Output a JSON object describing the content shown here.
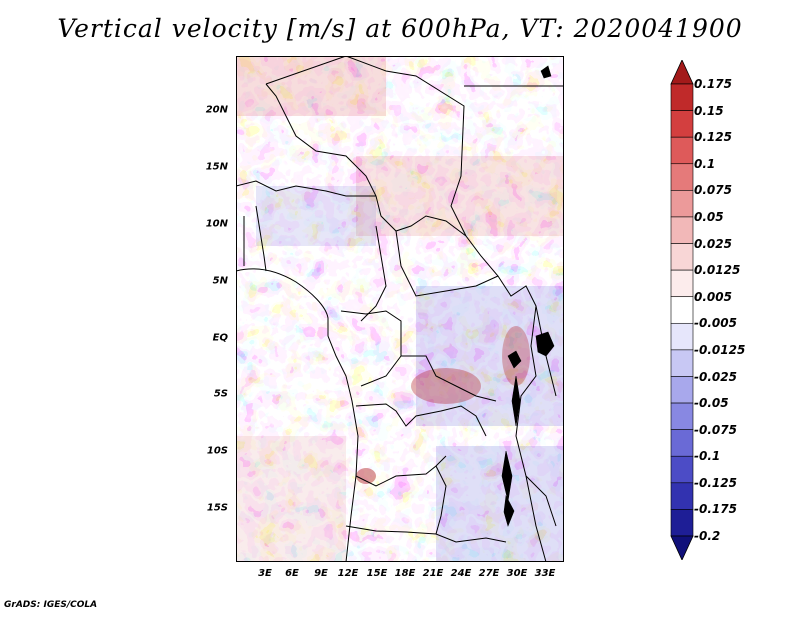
{
  "title": "Vertical velocity [m/s] at 600hPa, VT: 2020041900",
  "credit": "GrADS: IGES/COLA",
  "y_labels": [
    "20N",
    "15N",
    "10N",
    "5N",
    "EQ",
    "5S",
    "10S",
    "15S"
  ],
  "x_labels": [
    "3E",
    "6E",
    "9E",
    "12E",
    "15E",
    "18E",
    "21E",
    "24E",
    "27E",
    "30E",
    "33E"
  ],
  "colorbar": {
    "labels": [
      "0.175",
      "0.15",
      "0.125",
      "0.1",
      "0.075",
      "0.05",
      "0.025",
      "0.0125",
      "0.005",
      "-0.005",
      "-0.0125",
      "-0.025",
      "-0.05",
      "-0.075",
      "-0.1",
      "-0.125",
      "-0.175",
      "-0.2"
    ],
    "colors": [
      "#a31a1a",
      "#c02a2a",
      "#d33f3f",
      "#de5a5a",
      "#e57a7a",
      "#ec9a9a",
      "#f2b8b8",
      "#f8d6d6",
      "#fcecec",
      "#ffffff",
      "#e6e6fb",
      "#c8c8f4",
      "#a8a8ec",
      "#8888e2",
      "#6a6ad6",
      "#4c4cc6",
      "#3232b0",
      "#1e1e96",
      "#10107a"
    ]
  }
}
